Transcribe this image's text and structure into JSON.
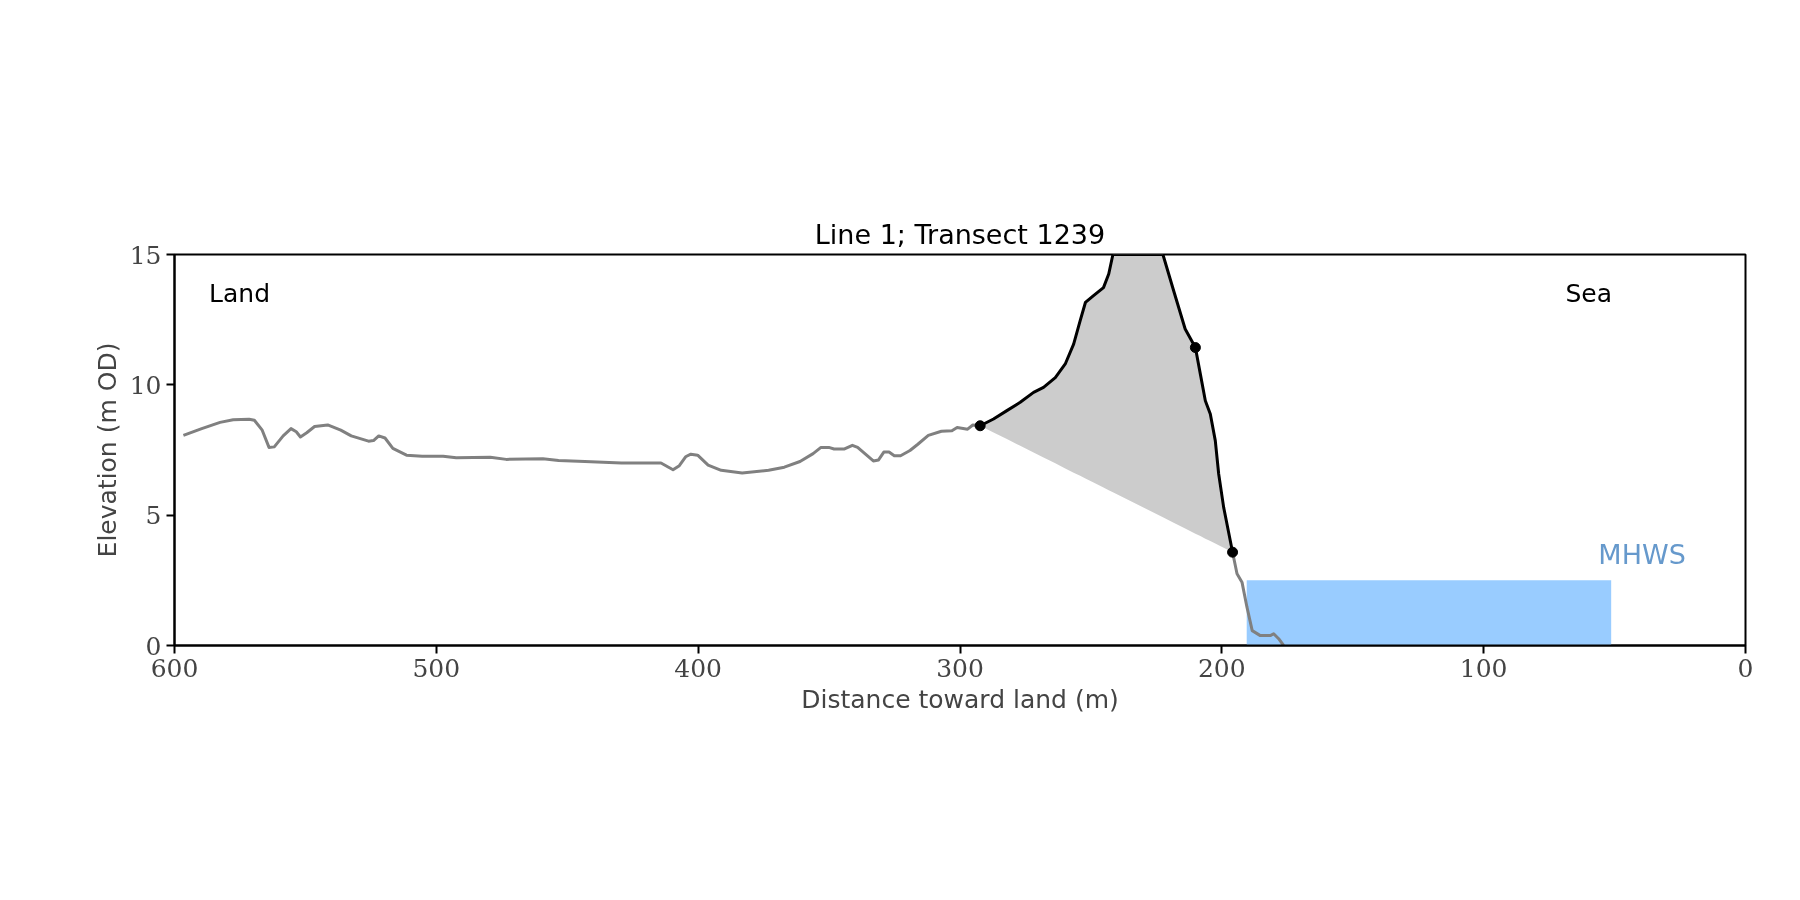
{
  "chart_data": {
    "type": "line",
    "title": "Line 1; Transect 1239",
    "xlabel": "Distance toward land (m)",
    "ylabel": "Elevation (m OD)",
    "xlim": [
      600,
      0
    ],
    "ylim": [
      0,
      15
    ],
    "xticks": [
      600,
      500,
      400,
      300,
      200,
      100,
      0
    ],
    "yticks": [
      0,
      5,
      10,
      15
    ],
    "grid": false,
    "series": [
      {
        "color": "#808080",
        "x": [
          596.6,
          589.6,
          582.6,
          577.6,
          571.5,
          569.5,
          566.5,
          563.9,
          561.9,
          558.5,
          555.5,
          553.5,
          551.9,
          549.5,
          546.5,
          541.5,
          536.5,
          532.5,
          525.9,
          524.0,
          522.0,
          519.6,
          516.6,
          511.4,
          505.4,
          497.4,
          492.4,
          479.4,
          473.3,
          459.3,
          453.3,
          443.3,
          429.3,
          414.2,
          409.6,
          407.2,
          404.8,
          402.8,
          400.2,
          396.2,
          391.2,
          383.2,
          373.1,
          367.1,
          361.1,
          356.1,
          353.1,
          350.1,
          348.1,
          344.1,
          341.1,
          339.1,
          333.1,
          331.1,
          329.1,
          327.1,
          325.1,
          322.7,
          319.1,
          316.1,
          312.1,
          307.1,
          303.1,
          301.1,
          297.1,
          295.1,
          292.3
        ],
        "values": [
          8.06,
          8.32,
          8.56,
          8.66,
          8.68,
          8.64,
          8.26,
          7.6,
          7.62,
          8.04,
          8.32,
          8.2,
          8.0,
          8.16,
          8.4,
          8.46,
          8.26,
          8.04,
          7.84,
          7.86,
          8.04,
          7.96,
          7.56,
          7.3,
          7.26,
          7.26,
          7.2,
          7.22,
          7.14,
          7.16,
          7.1,
          7.06,
          7.0,
          7.0,
          6.74,
          6.9,
          7.24,
          7.34,
          7.3,
          6.92,
          6.72,
          6.62,
          6.72,
          6.84,
          7.06,
          7.36,
          7.6,
          7.6,
          7.54,
          7.54,
          7.68,
          7.6,
          7.08,
          7.12,
          7.42,
          7.42,
          7.28,
          7.28,
          7.48,
          7.72,
          8.06,
          8.22,
          8.24,
          8.36,
          8.3,
          8.46,
          8.43
        ]
      },
      {
        "color": "#808080",
        "x": [
          195.9,
          194.2,
          192.3,
          190.4,
          188.4,
          185.3,
          181.5,
          180.2,
          178.3,
          176.4
        ],
        "values": [
          3.58,
          2.75,
          2.43,
          1.47,
          0.57,
          0.38,
          0.38,
          0.45,
          0.26,
          0.0
        ]
      },
      {
        "color": "#000000",
        "x": [
          292.3,
          287.2,
          282.1,
          277.0,
          271.9,
          268.1,
          263.6,
          259.8,
          256.6,
          254.1,
          252.1,
          249.0,
          245.2,
          243.2,
          241.6,
          222.5,
          218.4,
          214.0,
          210.1,
          208.2,
          206.3,
          204.4,
          202.5,
          201.2,
          199.3,
          195.9
        ],
        "values": [
          8.43,
          8.69,
          9.01,
          9.33,
          9.71,
          9.9,
          10.28,
          10.8,
          11.56,
          12.46,
          13.16,
          13.42,
          13.73,
          14.25,
          15.0,
          15.0,
          13.61,
          12.14,
          11.43,
          10.41,
          9.39,
          8.88,
          7.86,
          6.58,
          5.3,
          3.58
        ],
        "upper": [
          8.43,
          8.69,
          9.01,
          9.33,
          9.71,
          9.9,
          10.28,
          10.8,
          11.56,
          12.46,
          13.16,
          13.42,
          13.73,
          14.25,
          15.0,
          15.0,
          13.61,
          12.14,
          11.43,
          10.41,
          9.39,
          8.88,
          7.86,
          6.58,
          5.3,
          3.58
        ],
        "lower": [
          8.43,
          8.17,
          7.92,
          7.66,
          7.4,
          7.21,
          6.99,
          6.79,
          6.63,
          6.51,
          6.41,
          6.25,
          6.06,
          5.96,
          5.88,
          4.92,
          4.71,
          4.49,
          4.29,
          4.2,
          4.1,
          4.01,
          3.91,
          3.85,
          3.75,
          3.58
        ]
      },
      {
        "type": "scatter",
        "color": "#000000",
        "marker": "circle",
        "x": [
          292.3,
          210.1,
          195.9
        ],
        "values": [
          8.43,
          11.43,
          3.58
        ]
      },
      {
        "type": "area",
        "color": "#99ccff",
        "x": [
          190.5,
          51.3
        ],
        "values": [
          2.5,
          2.5
        ]
      }
    ],
    "annotations": [
      "Land",
      "Sea",
      "MHWS"
    ]
  }
}
